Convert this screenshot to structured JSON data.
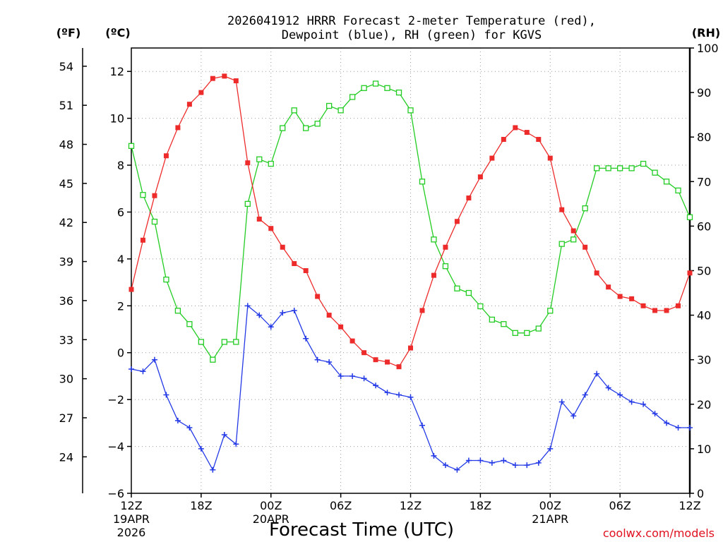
{
  "chart_data": {
    "type": "line",
    "title_line1": "2026041912 HRRR Forecast 2-meter Temperature (red),",
    "title_line2": "Dewpoint (blue), RH (green) for KGVS",
    "xlabel": "Forecast Time (UTC)",
    "credit": "coolwx.com/models",
    "left_unit_f": "(ºF)",
    "left_unit_c": "(ºC)",
    "right_unit": "(RH)",
    "x_range_hours": [
      0,
      48
    ],
    "y_celsius_range": [
      -6,
      13
    ],
    "y_rh_range": [
      0,
      100
    ],
    "y_celsius_ticks": [
      "12",
      "10",
      "8",
      "6",
      "4",
      "2",
      "0",
      "−2",
      "−4",
      "−6"
    ],
    "y_celsius_tick_values": [
      12,
      10,
      8,
      6,
      4,
      2,
      0,
      -2,
      -4,
      -6
    ],
    "y_fahrenheit_ticks": [
      "54",
      "51",
      "48",
      "45",
      "42",
      "39",
      "36",
      "33",
      "30",
      "27",
      "24"
    ],
    "y_fahrenheit_tick_values": [
      54,
      51,
      48,
      45,
      42,
      39,
      36,
      33,
      30,
      27,
      24
    ],
    "y_rh_ticks": [
      "100",
      "90",
      "80",
      "70",
      "60",
      "50",
      "40",
      "30",
      "20",
      "10",
      "0"
    ],
    "y_rh_tick_values": [
      100,
      90,
      80,
      70,
      60,
      50,
      40,
      30,
      20,
      10,
      0
    ],
    "x_ticks": [
      {
        "hour": 0,
        "label": "12Z",
        "date": "19APR",
        "year": "2026"
      },
      {
        "hour": 6,
        "label": "18Z"
      },
      {
        "hour": 12,
        "label": "00Z",
        "date": "20APR"
      },
      {
        "hour": 18,
        "label": "06Z"
      },
      {
        "hour": 24,
        "label": "12Z"
      },
      {
        "hour": 30,
        "label": "18Z"
      },
      {
        "hour": 36,
        "label": "00Z",
        "date": "21APR"
      },
      {
        "hour": 42,
        "label": "06Z"
      },
      {
        "hour": 48,
        "label": "12Z"
      }
    ],
    "series": [
      {
        "name": "2-meter Temperature",
        "units": "°C",
        "color": "#ee2b2b",
        "marker": "filled-square",
        "values": [
          2.7,
          4.8,
          6.7,
          8.4,
          9.6,
          10.6,
          11.1,
          11.7,
          11.8,
          11.6,
          8.1,
          5.7,
          5.3,
          4.5,
          3.8,
          3.5,
          2.4,
          1.6,
          1.1,
          0.5,
          0.0,
          -0.3,
          -0.4,
          -0.6,
          0.2,
          1.8,
          3.3,
          4.5,
          5.6,
          6.6,
          7.5,
          8.3,
          9.1,
          9.6,
          9.4,
          9.1,
          8.3,
          6.1,
          5.2,
          4.5,
          3.4,
          2.8,
          2.4,
          2.3,
          2.0,
          1.8,
          1.8,
          2.0,
          3.4
        ]
      },
      {
        "name": "Dewpoint",
        "units": "°C",
        "color": "#2339e6",
        "marker": "plus",
        "values": [
          -0.7,
          -0.8,
          -0.3,
          -1.8,
          -2.9,
          -3.2,
          -4.1,
          -5.0,
          -3.5,
          -3.9,
          2.0,
          1.6,
          1.1,
          1.7,
          1.8,
          0.6,
          -0.3,
          -0.4,
          -1.0,
          -1.0,
          -1.1,
          -1.4,
          -1.7,
          -1.8,
          -1.9,
          -3.1,
          -4.4,
          -4.8,
          -5.0,
          -4.6,
          -4.6,
          -4.7,
          -4.6,
          -4.8,
          -4.8,
          -4.7,
          -4.1,
          -2.1,
          -2.7,
          -1.8,
          -0.9,
          -1.5,
          -1.8,
          -2.1,
          -2.2,
          -2.6,
          -3.0,
          -3.2,
          -3.2
        ]
      },
      {
        "name": "Relative Humidity",
        "units": "%",
        "color": "#22cc22",
        "marker": "open-square",
        "values": [
          78,
          67,
          61,
          48,
          41,
          38,
          34,
          30,
          34,
          34,
          65,
          75,
          74,
          82,
          86,
          82,
          83,
          87,
          86,
          89,
          91,
          92,
          91,
          90,
          86,
          70,
          57,
          51,
          46,
          45,
          42,
          39,
          38,
          36,
          36,
          37,
          41,
          56,
          57,
          64,
          73,
          73,
          73,
          73,
          74,
          72,
          70,
          68,
          62
        ]
      }
    ]
  }
}
